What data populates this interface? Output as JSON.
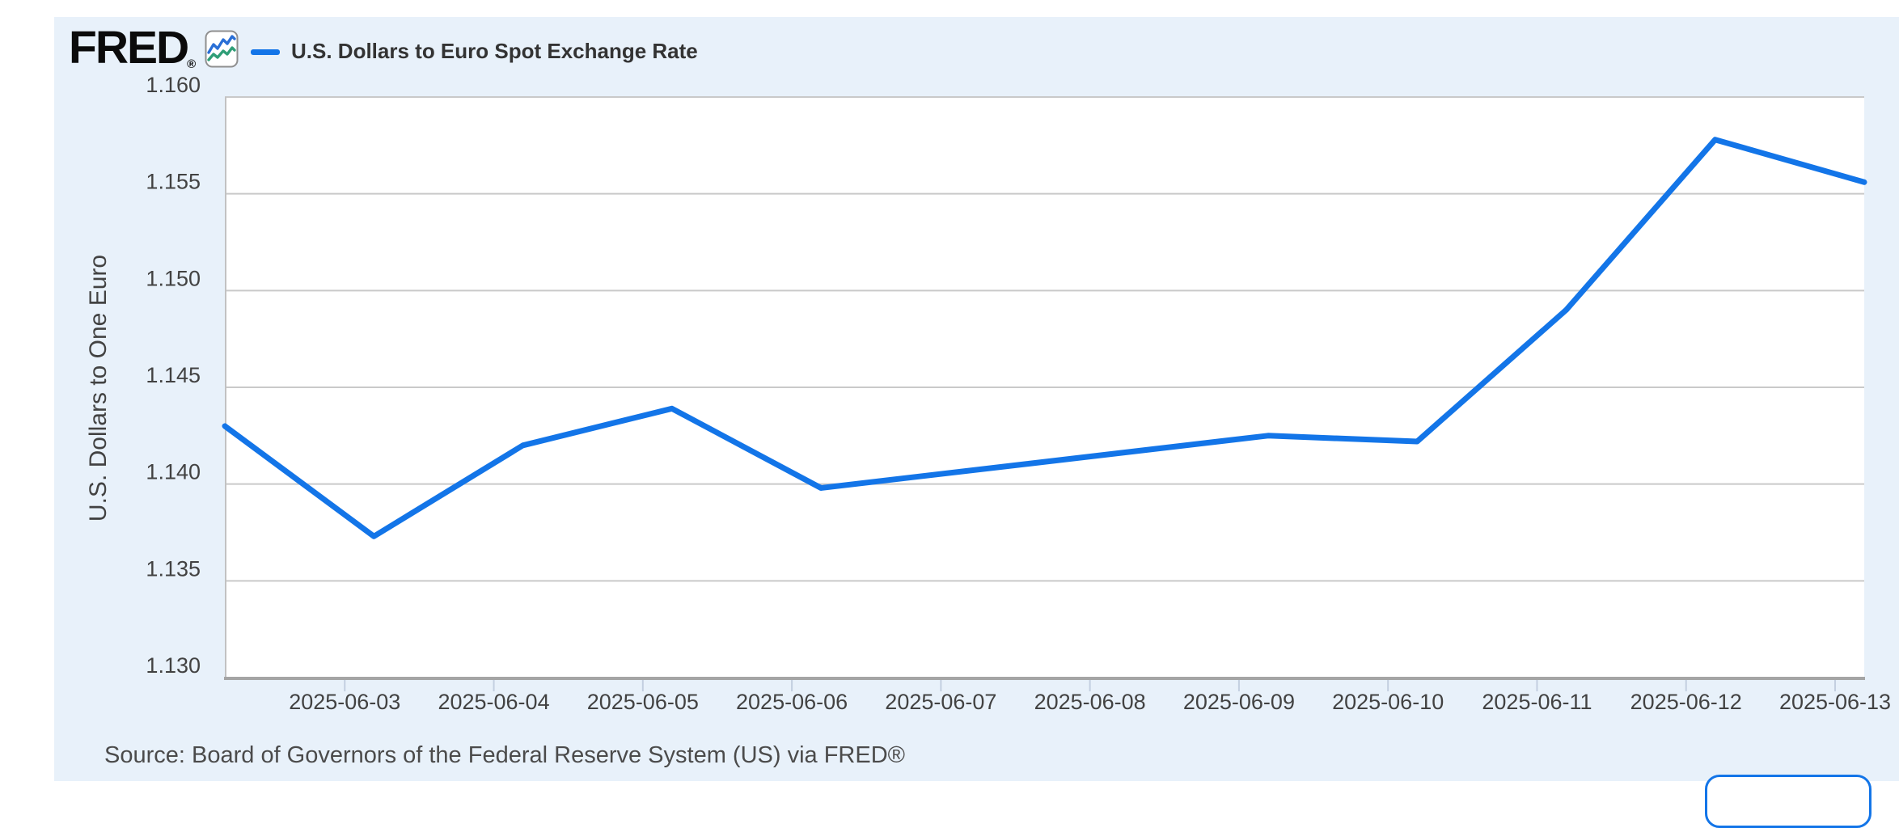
{
  "logo": {
    "text": "FRED",
    "registered": "®"
  },
  "legend": {
    "label": "U.S. Dollars to Euro Spot Exchange Rate"
  },
  "y_axis": {
    "title": "U.S. Dollars to One Euro",
    "tick_labels": [
      "1.160",
      "1.155",
      "1.150",
      "1.145",
      "1.140",
      "1.135",
      "1.130"
    ]
  },
  "x_axis": {
    "tick_labels": [
      "2025-06-03",
      "2025-06-04",
      "2025-06-05",
      "2025-06-06",
      "2025-06-07",
      "2025-06-08",
      "2025-06-09",
      "2025-06-10",
      "2025-06-11",
      "2025-06-12",
      "2025-06-13"
    ]
  },
  "source": {
    "text": "Source: Board of Governors of the Federal Reserve System (US) via FRED®"
  },
  "chart_data": {
    "type": "line",
    "title": "U.S. Dollars to Euro Spot Exchange Rate",
    "ylabel": "U.S. Dollars to One Euro",
    "x": [
      "2025-06-02",
      "2025-06-03",
      "2025-06-04",
      "2025-06-05",
      "2025-06-06",
      "2025-06-09",
      "2025-06-10",
      "2025-06-11",
      "2025-06-12",
      "2025-06-13"
    ],
    "values": [
      1.143,
      1.1373,
      1.142,
      1.1439,
      1.1398,
      1.1425,
      1.1422,
      1.149,
      1.1578,
      1.1556
    ],
    "ylim": [
      1.13,
      1.16
    ],
    "y_tick_step": 0.005,
    "x_range": [
      "2025-06-02",
      "2025-06-13"
    ],
    "grid": true,
    "legend_position": "top-left"
  },
  "colors": {
    "line": "#1375e8",
    "grid": "#c9c9c9",
    "axis_line": "#a5a5a5",
    "plot_border": "#c2c2c2",
    "tick_mark": "#c3cfe0",
    "axis_text": "#424242",
    "title_text": "#333333",
    "source_text": "#4b4b4b",
    "panel_bg": "#e8f1fa",
    "plot_bg": "#ffffff",
    "icon_blue": "#2a6fd6",
    "icon_green": "#2f9e77",
    "icon_border": "#8f8f8f",
    "button_border": "#1375e8"
  }
}
